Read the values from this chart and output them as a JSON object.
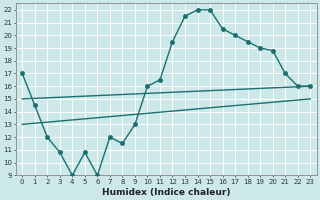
{
  "xlabel": "Humidex (Indice chaleur)",
  "bg_color": "#cce8e8",
  "grid_color": "#ffffff",
  "line_color": "#1a7070",
  "xlim": [
    -0.5,
    23.5
  ],
  "ylim": [
    9,
    22.5
  ],
  "xticks": [
    0,
    1,
    2,
    3,
    4,
    5,
    6,
    7,
    8,
    9,
    10,
    11,
    12,
    13,
    14,
    15,
    16,
    17,
    18,
    19,
    20,
    21,
    22,
    23
  ],
  "yticks": [
    9,
    10,
    11,
    12,
    13,
    14,
    15,
    16,
    17,
    18,
    19,
    20,
    21,
    22
  ],
  "line1_x": [
    0,
    1,
    2,
    3,
    4,
    5,
    6,
    7,
    8,
    9,
    10,
    11,
    12,
    13,
    14,
    15,
    16,
    17,
    18,
    19,
    20,
    21,
    22,
    23
  ],
  "line1_y": [
    17,
    14.5,
    12,
    10.8,
    9.0,
    10.8,
    9.0,
    12,
    11.5,
    13,
    16,
    16.5,
    19.5,
    21.5,
    22,
    22,
    20.5,
    20,
    19.5,
    19,
    18.8,
    17,
    16,
    16
  ],
  "line2_x": [
    0,
    23
  ],
  "line2_y": [
    15.0,
    16.0
  ],
  "line3_x": [
    0,
    23
  ],
  "line3_y": [
    13.0,
    15.0
  ],
  "marker_size": 2.5,
  "linewidth": 1.0,
  "tick_fontsize": 5.0,
  "xlabel_fontsize": 6.5
}
